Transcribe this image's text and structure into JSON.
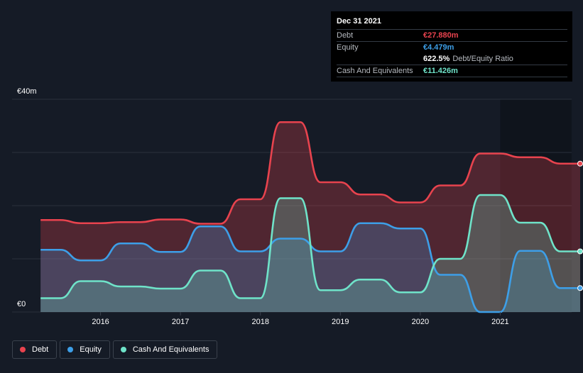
{
  "tooltip": {
    "date": "Dec 31 2021",
    "rows": [
      {
        "label": "Debt",
        "value": "€27.880m",
        "color": "#e8434e"
      },
      {
        "label": "Equity",
        "value": "€4.479m",
        "color": "#3d9fe8"
      },
      {
        "label": "",
        "value": "622.5%",
        "suffix": "Debt/Equity Ratio",
        "color": "#ffffff"
      },
      {
        "label": "Cash And Equivalents",
        "value": "€11.426m",
        "color": "#6fe3c9"
      }
    ]
  },
  "legend": [
    {
      "label": "Debt",
      "color": "#e8434e"
    },
    {
      "label": "Equity",
      "color": "#3d9fe8"
    },
    {
      "label": "Cash And Equivalents",
      "color": "#6fe3c9"
    }
  ],
  "chart_data": {
    "type": "area",
    "ylim": [
      0,
      40
    ],
    "y_tick_labels": [
      {
        "value": 40,
        "label": "€40m"
      },
      {
        "value": 0,
        "label": "€0"
      }
    ],
    "x_ticks": [
      2016,
      2017,
      2018,
      2019,
      2020,
      2021
    ],
    "xlim": [
      2015.25,
      2022.0
    ],
    "grid": true,
    "legend_position": "bottom-left",
    "series": [
      {
        "name": "Debt",
        "color": "#e8434e",
        "x": [
          2015.25,
          2015.5,
          2015.75,
          2016.0,
          2016.25,
          2016.5,
          2016.75,
          2017.0,
          2017.25,
          2017.5,
          2017.75,
          2018.0,
          2018.25,
          2018.5,
          2018.75,
          2019.0,
          2019.25,
          2019.5,
          2019.75,
          2020.0,
          2020.25,
          2020.5,
          2020.75,
          2021.0,
          2021.25,
          2021.5,
          2021.75,
          2022.0
        ],
        "values": [
          17.3,
          17.3,
          16.7,
          16.7,
          16.9,
          16.9,
          17.4,
          17.4,
          16.6,
          16.6,
          21.2,
          21.2,
          35.7,
          35.7,
          24.4,
          24.4,
          22.1,
          22.1,
          20.6,
          20.6,
          23.8,
          23.8,
          29.8,
          29.8,
          29.1,
          29.1,
          27.9,
          27.9
        ]
      },
      {
        "name": "Equity",
        "color": "#3d9fe8",
        "x": [
          2015.25,
          2015.5,
          2015.75,
          2016.0,
          2016.25,
          2016.5,
          2016.75,
          2017.0,
          2017.25,
          2017.5,
          2017.75,
          2018.0,
          2018.25,
          2018.5,
          2018.75,
          2019.0,
          2019.25,
          2019.5,
          2019.75,
          2020.0,
          2020.25,
          2020.5,
          2020.75,
          2021.0,
          2021.25,
          2021.5,
          2021.75,
          2022.0
        ],
        "values": [
          11.7,
          11.7,
          9.7,
          9.7,
          12.9,
          12.9,
          11.3,
          11.3,
          16.1,
          16.1,
          11.4,
          11.4,
          13.8,
          13.8,
          11.4,
          11.4,
          16.7,
          16.7,
          15.7,
          15.7,
          7.0,
          7.0,
          0.0,
          0.0,
          11.5,
          11.5,
          4.5,
          4.5
        ]
      },
      {
        "name": "Cash And Equivalents",
        "color": "#6fe3c9",
        "x": [
          2015.25,
          2015.5,
          2015.75,
          2016.0,
          2016.25,
          2016.5,
          2016.75,
          2017.0,
          2017.25,
          2017.5,
          2017.75,
          2018.0,
          2018.25,
          2018.5,
          2018.75,
          2019.0,
          2019.25,
          2019.5,
          2019.75,
          2020.0,
          2020.25,
          2020.5,
          2020.75,
          2021.0,
          2021.25,
          2021.5,
          2021.75,
          2022.0
        ],
        "values": [
          2.6,
          2.6,
          5.8,
          5.8,
          4.8,
          4.8,
          4.4,
          4.4,
          7.8,
          7.8,
          2.6,
          2.6,
          21.4,
          21.4,
          4.1,
          4.1,
          6.1,
          6.1,
          3.7,
          3.7,
          10.0,
          10.0,
          22.0,
          22.0,
          16.8,
          16.8,
          11.4,
          11.4
        ]
      }
    ]
  }
}
